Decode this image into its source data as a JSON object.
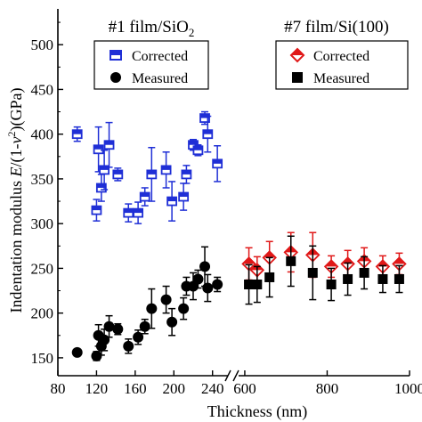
{
  "chart_data": {
    "type": "scatter",
    "ylabel_parts": {
      "prefix": "Indentation modulus ",
      "e": "E",
      "mid": "/(1-",
      "nu": "ν",
      "exp": "2",
      "suffix": ")(GPa)"
    },
    "xlabel": "Thickness (nm)",
    "ylim": [
      130,
      540
    ],
    "yticks": [
      150,
      200,
      250,
      300,
      350,
      400,
      450,
      500
    ],
    "panels": [
      {
        "title_main": "#1 film/SiO",
        "title_sub": "2",
        "xlim": [
          80,
          255
        ],
        "xticks": [
          80,
          120,
          160,
          200,
          240
        ],
        "legend_corrected": "Corrected",
        "legend_measured": "Measured",
        "series": [
          {
            "name": "Corrected",
            "points": [
              {
                "x": 100,
                "y": 400,
                "err": 8
              },
              {
                "x": 120,
                "y": 315,
                "err": 12
              },
              {
                "x": 122,
                "y": 383,
                "err": 25
              },
              {
                "x": 125,
                "y": 340,
                "err": 15
              },
              {
                "x": 128,
                "y": 360,
                "err": 22
              },
              {
                "x": 133,
                "y": 388,
                "err": 25
              },
              {
                "x": 142,
                "y": 355,
                "err": 7
              },
              {
                "x": 153,
                "y": 312,
                "err": 10
              },
              {
                "x": 163,
                "y": 312,
                "err": 12
              },
              {
                "x": 170,
                "y": 330,
                "err": 10
              },
              {
                "x": 177,
                "y": 355,
                "err": 30
              },
              {
                "x": 192,
                "y": 360,
                "err": 20
              },
              {
                "x": 198,
                "y": 325,
                "err": 22
              },
              {
                "x": 210,
                "y": 330,
                "err": 15
              },
              {
                "x": 213,
                "y": 355,
                "err": 10
              },
              {
                "x": 220,
                "y": 388,
                "err": 6
              },
              {
                "x": 225,
                "y": 382,
                "err": 6
              },
              {
                "x": 232,
                "y": 418,
                "err": 7
              },
              {
                "x": 235,
                "y": 400,
                "err": 20
              },
              {
                "x": 245,
                "y": 367,
                "err": 20
              }
            ]
          },
          {
            "name": "Measured",
            "points": [
              {
                "x": 100,
                "y": 156,
                "err": 0
              },
              {
                "x": 120,
                "y": 152,
                "err": 5
              },
              {
                "x": 122,
                "y": 175,
                "err": 12
              },
              {
                "x": 125,
                "y": 163,
                "err": 10
              },
              {
                "x": 128,
                "y": 170,
                "err": 12
              },
              {
                "x": 133,
                "y": 185,
                "err": 12
              },
              {
                "x": 142,
                "y": 182,
                "err": 6
              },
              {
                "x": 153,
                "y": 163,
                "err": 8
              },
              {
                "x": 163,
                "y": 173,
                "err": 8
              },
              {
                "x": 170,
                "y": 185,
                "err": 8
              },
              {
                "x": 177,
                "y": 205,
                "err": 22
              },
              {
                "x": 192,
                "y": 215,
                "err": 15
              },
              {
                "x": 198,
                "y": 190,
                "err": 15
              },
              {
                "x": 210,
                "y": 205,
                "err": 12
              },
              {
                "x": 213,
                "y": 230,
                "err": 10
              },
              {
                "x": 220,
                "y": 230,
                "err": 15
              },
              {
                "x": 225,
                "y": 238,
                "err": 10
              },
              {
                "x": 232,
                "y": 252,
                "err": 22
              },
              {
                "x": 235,
                "y": 228,
                "err": 15
              },
              {
                "x": 245,
                "y": 232,
                "err": 8
              }
            ]
          }
        ]
      },
      {
        "title_main": "#7 film/Si(100)",
        "title_sub": "",
        "xlim": [
          585,
          1000
        ],
        "xticks": [
          600,
          800,
          1000
        ],
        "legend_corrected": "Corrected",
        "legend_measured": "Measured",
        "series": [
          {
            "name": "Corrected",
            "points": [
              {
                "x": 610,
                "y": 255,
                "err": 18
              },
              {
                "x": 630,
                "y": 248,
                "err": 15
              },
              {
                "x": 660,
                "y": 262,
                "err": 18
              },
              {
                "x": 712,
                "y": 268,
                "err": 22
              },
              {
                "x": 765,
                "y": 265,
                "err": 25
              },
              {
                "x": 810,
                "y": 252,
                "err": 12
              },
              {
                "x": 850,
                "y": 255,
                "err": 15
              },
              {
                "x": 890,
                "y": 258,
                "err": 15
              },
              {
                "x": 935,
                "y": 252,
                "err": 12
              },
              {
                "x": 975,
                "y": 255,
                "err": 12
              }
            ]
          },
          {
            "name": "Measured",
            "points": [
              {
                "x": 610,
                "y": 232,
                "err": 22
              },
              {
                "x": 630,
                "y": 232,
                "err": 20
              },
              {
                "x": 660,
                "y": 240,
                "err": 22
              },
              {
                "x": 712,
                "y": 258,
                "err": 28
              },
              {
                "x": 765,
                "y": 245,
                "err": 30
              },
              {
                "x": 810,
                "y": 232,
                "err": 18
              },
              {
                "x": 850,
                "y": 238,
                "err": 18
              },
              {
                "x": 890,
                "y": 245,
                "err": 18
              },
              {
                "x": 935,
                "y": 238,
                "err": 15
              },
              {
                "x": 975,
                "y": 238,
                "err": 15
              }
            ]
          }
        ]
      }
    ],
    "colors": {
      "corrected_left": "#1f2fd6",
      "corrected_right": "#e01818",
      "measured": "#000000"
    }
  }
}
